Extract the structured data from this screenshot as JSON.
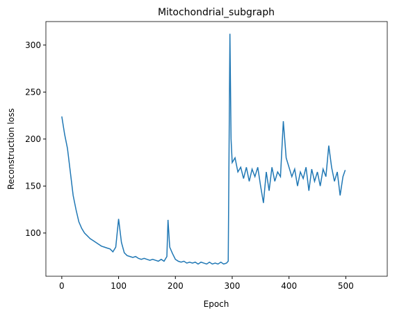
{
  "chart_data": {
    "type": "line",
    "title": "Mitochondrial_subgraph",
    "xlabel": "Epoch",
    "ylabel": "Reconstruction loss",
    "x": [
      0,
      5,
      10,
      15,
      20,
      25,
      30,
      35,
      40,
      45,
      50,
      55,
      60,
      65,
      70,
      75,
      80,
      85,
      90,
      95,
      100,
      105,
      110,
      115,
      120,
      125,
      130,
      135,
      140,
      145,
      150,
      155,
      160,
      165,
      170,
      175,
      180,
      185,
      187,
      190,
      195,
      200,
      205,
      210,
      215,
      220,
      225,
      230,
      235,
      240,
      245,
      250,
      255,
      260,
      265,
      270,
      275,
      280,
      285,
      290,
      293,
      296,
      298,
      300,
      305,
      310,
      315,
      320,
      325,
      330,
      335,
      340,
      345,
      350,
      355,
      360,
      365,
      370,
      375,
      380,
      385,
      390,
      395,
      400,
      405,
      410,
      415,
      420,
      425,
      430,
      435,
      440,
      445,
      450,
      455,
      460,
      465,
      470,
      475,
      480,
      485,
      490,
      495,
      499
    ],
    "series": [
      {
        "name": "loss",
        "color": "#1f77b4",
        "values": [
          224,
          205,
          190,
          165,
          140,
          125,
          112,
          105,
          100,
          97,
          94,
          92,
          90,
          88,
          86,
          85,
          84,
          83,
          80,
          85,
          115,
          90,
          79,
          76,
          75,
          74,
          75,
          73,
          72,
          73,
          72,
          71,
          72,
          71,
          70,
          72,
          70,
          75,
          114,
          85,
          78,
          72,
          70,
          69,
          70,
          68,
          69,
          68,
          69,
          67,
          69,
          68,
          67,
          69,
          67,
          68,
          67,
          69,
          67,
          68,
          70,
          312,
          200,
          175,
          180,
          165,
          170,
          158,
          170,
          155,
          168,
          160,
          170,
          150,
          132,
          165,
          145,
          170,
          155,
          165,
          160,
          219,
          180,
          170,
          160,
          168,
          150,
          165,
          158,
          170,
          145,
          168,
          155,
          165,
          150,
          168,
          160,
          193,
          170,
          155,
          165,
          140,
          160,
          167
        ]
      }
    ],
    "xlim": [
      -28,
      573
    ],
    "xticks": [
      0,
      100,
      200,
      300,
      400,
      500
    ],
    "ylim": [
      54,
      325
    ],
    "yticks": [
      100,
      150,
      200,
      250,
      300
    ],
    "grid": false
  }
}
